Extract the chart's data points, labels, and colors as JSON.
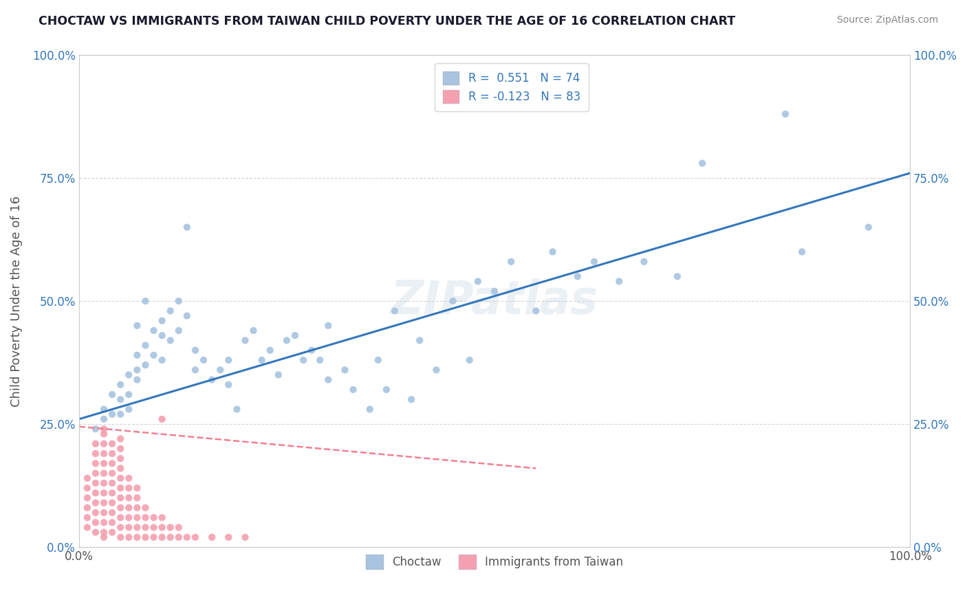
{
  "title": "CHOCTAW VS IMMIGRANTS FROM TAIWAN CHILD POVERTY UNDER THE AGE OF 16 CORRELATION CHART",
  "source": "Source: ZipAtlas.com",
  "ylabel": "Child Poverty Under the Age of 16",
  "xlabel": "",
  "legend_labels": [
    "Choctaw",
    "Immigrants from Taiwan"
  ],
  "r_choctaw": 0.551,
  "n_choctaw": 74,
  "r_taiwan": -0.123,
  "n_taiwan": 83,
  "choctaw_color": "#a8c4e0",
  "taiwan_color": "#f4a0b0",
  "choctaw_line_color": "#3377bb",
  "taiwan_line_color": "#f08090",
  "watermark": "ZIPatlas",
  "xlim": [
    0.0,
    1.0
  ],
  "ylim": [
    0.0,
    1.0
  ],
  "xtick_labels": [
    "0.0%",
    "100.0%"
  ],
  "ytick_labels": [
    "0.0%",
    "25.0%",
    "50.0%",
    "75.0%",
    "100.0%"
  ],
  "ytick_values": [
    0.0,
    0.25,
    0.5,
    0.75,
    1.0
  ],
  "grid_color": "#cccccc",
  "background_color": "#ffffff",
  "choctaw_line_x0": 0.0,
  "choctaw_line_y0": 0.26,
  "choctaw_line_x1": 1.0,
  "choctaw_line_y1": 0.76,
  "taiwan_line_x0": 0.0,
  "taiwan_line_y0": 0.245,
  "taiwan_line_x1": 0.55,
  "taiwan_line_y1": 0.16,
  "choctaw_points_x": [
    0.02,
    0.03,
    0.03,
    0.04,
    0.04,
    0.05,
    0.05,
    0.05,
    0.06,
    0.06,
    0.06,
    0.07,
    0.07,
    0.07,
    0.08,
    0.08,
    0.09,
    0.09,
    0.1,
    0.1,
    0.1,
    0.11,
    0.11,
    0.12,
    0.12,
    0.13,
    0.14,
    0.14,
    0.15,
    0.16,
    0.17,
    0.18,
    0.18,
    0.19,
    0.2,
    0.21,
    0.22,
    0.23,
    0.24,
    0.25,
    0.26,
    0.27,
    0.28,
    0.29,
    0.3,
    0.32,
    0.33,
    0.35,
    0.36,
    0.37,
    0.38,
    0.4,
    0.41,
    0.43,
    0.45,
    0.47,
    0.48,
    0.5,
    0.52,
    0.55,
    0.57,
    0.6,
    0.62,
    0.65,
    0.68,
    0.72,
    0.75,
    0.85,
    0.87,
    0.95,
    0.07,
    0.08,
    0.13,
    0.3
  ],
  "choctaw_points_y": [
    0.24,
    0.28,
    0.26,
    0.31,
    0.27,
    0.33,
    0.3,
    0.27,
    0.35,
    0.31,
    0.28,
    0.39,
    0.36,
    0.34,
    0.41,
    0.37,
    0.44,
    0.39,
    0.46,
    0.43,
    0.38,
    0.48,
    0.42,
    0.5,
    0.44,
    0.47,
    0.4,
    0.36,
    0.38,
    0.34,
    0.36,
    0.33,
    0.38,
    0.28,
    0.42,
    0.44,
    0.38,
    0.4,
    0.35,
    0.42,
    0.43,
    0.38,
    0.4,
    0.38,
    0.34,
    0.36,
    0.32,
    0.28,
    0.38,
    0.32,
    0.48,
    0.3,
    0.42,
    0.36,
    0.5,
    0.38,
    0.54,
    0.52,
    0.58,
    0.48,
    0.6,
    0.55,
    0.58,
    0.54,
    0.58,
    0.55,
    0.78,
    0.88,
    0.6,
    0.65,
    0.45,
    0.5,
    0.65,
    0.45
  ],
  "taiwan_points_x": [
    0.01,
    0.01,
    0.01,
    0.01,
    0.01,
    0.01,
    0.02,
    0.02,
    0.02,
    0.02,
    0.02,
    0.02,
    0.02,
    0.02,
    0.02,
    0.02,
    0.03,
    0.03,
    0.03,
    0.03,
    0.03,
    0.03,
    0.03,
    0.03,
    0.03,
    0.03,
    0.03,
    0.03,
    0.03,
    0.04,
    0.04,
    0.04,
    0.04,
    0.04,
    0.04,
    0.04,
    0.04,
    0.04,
    0.04,
    0.05,
    0.05,
    0.05,
    0.05,
    0.05,
    0.05,
    0.05,
    0.05,
    0.05,
    0.05,
    0.05,
    0.06,
    0.06,
    0.06,
    0.06,
    0.06,
    0.06,
    0.06,
    0.07,
    0.07,
    0.07,
    0.07,
    0.07,
    0.07,
    0.08,
    0.08,
    0.08,
    0.08,
    0.09,
    0.09,
    0.09,
    0.1,
    0.1,
    0.1,
    0.11,
    0.11,
    0.12,
    0.12,
    0.13,
    0.14,
    0.16,
    0.18,
    0.2,
    0.1
  ],
  "taiwan_points_y": [
    0.04,
    0.06,
    0.08,
    0.1,
    0.12,
    0.14,
    0.03,
    0.05,
    0.07,
    0.09,
    0.11,
    0.13,
    0.15,
    0.17,
    0.19,
    0.21,
    0.03,
    0.05,
    0.07,
    0.09,
    0.11,
    0.13,
    0.15,
    0.17,
    0.19,
    0.21,
    0.23,
    0.24,
    0.02,
    0.03,
    0.05,
    0.07,
    0.09,
    0.11,
    0.13,
    0.15,
    0.17,
    0.19,
    0.21,
    0.02,
    0.04,
    0.06,
    0.08,
    0.1,
    0.12,
    0.14,
    0.16,
    0.18,
    0.2,
    0.22,
    0.02,
    0.04,
    0.06,
    0.08,
    0.1,
    0.12,
    0.14,
    0.02,
    0.04,
    0.06,
    0.08,
    0.1,
    0.12,
    0.02,
    0.04,
    0.06,
    0.08,
    0.02,
    0.04,
    0.06,
    0.02,
    0.04,
    0.06,
    0.02,
    0.04,
    0.02,
    0.04,
    0.02,
    0.02,
    0.02,
    0.02,
    0.02,
    0.26
  ]
}
